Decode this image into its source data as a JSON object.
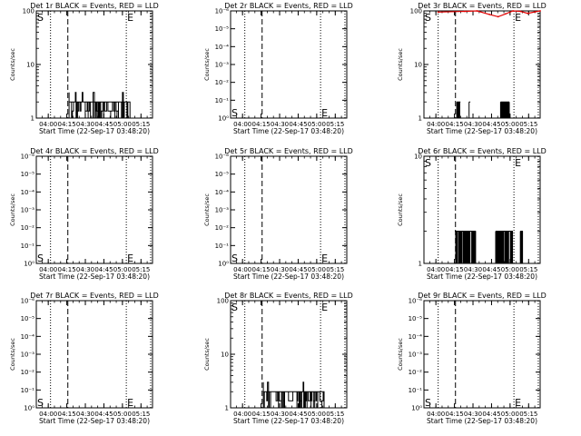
{
  "figure": {
    "x_ticks": [
      "04:00",
      "04:15",
      "04:30",
      "04:45",
      "05:00",
      "05:15"
    ],
    "x_label": "Start Time (22-Sep-17 03:48:20)",
    "y_label": "Counts/sec",
    "start_marker": "S",
    "end_marker": "E",
    "colors": {
      "events": "#000000",
      "lld": "#e00000",
      "axes": "#000000"
    }
  },
  "chart_data": [
    {
      "type": "line",
      "title": "Det 1r BLACK = Events, RED = LLD",
      "x_unit": "minutes since 03:48:20",
      "x_range": [
        2.0,
        96.0
      ],
      "y_ticks": [
        "1",
        "10",
        "100"
      ],
      "start_x": 13.5,
      "end_x": 74.8,
      "dashed_x": 27.5,
      "dotted_x": [
        13.5,
        74.8,
        94.5
      ],
      "s_pos": "top",
      "e_pos": "top",
      "events": {
        "x_start": 28.5,
        "x_end": 77.0,
        "low": 1.35,
        "high": 2.0,
        "peak": 3.0
      },
      "lld_present": false
    },
    {
      "type": "line",
      "title": "Det 2r BLACK = Events, RED = LLD",
      "x_unit": "minutes since 03:48:20",
      "x_range": [
        2.0,
        96.0
      ],
      "y_ticks": [
        "10⁰",
        "10⁻¹",
        "10⁻²",
        "10⁻³",
        "10⁻⁴",
        "10⁻⁵",
        "10⁻⁶"
      ],
      "start_x": 13.5,
      "end_x": 74.8,
      "dashed_x": 27.5,
      "dotted_x": [
        13.5,
        74.8,
        94.5
      ],
      "s_pos": "bottom",
      "e_pos": "bottom",
      "events": null,
      "lld_present": false
    },
    {
      "type": "line",
      "title": "Det 3r BLACK = Events, RED = LLD",
      "x_unit": "minutes since 03:48:20",
      "x_range": [
        2.0,
        96.0
      ],
      "y_ticks": [
        "1",
        "10",
        "100"
      ],
      "start_x": 13.5,
      "end_x": 74.8,
      "dashed_x": 27.5,
      "dotted_x": [
        13.5,
        74.8,
        94.5
      ],
      "s_pos": "top",
      "e_pos": "top",
      "events": {
        "x_start": 28.5,
        "x_end": 77.0,
        "low": 1.0,
        "high": 2.0,
        "peak": 2.0,
        "bursts": [
          [
            28.5,
            31.5
          ],
          [
            38.5,
            39.5
          ],
          [
            64.0,
            71.0
          ]
        ]
      },
      "lld_present": true,
      "lld": {
        "x": [
          13.5,
          35,
          45,
          55,
          62,
          68,
          74,
          80,
          86,
          92,
          96
        ],
        "y": [
          95,
          98,
          100,
          86,
          78,
          88,
          100,
          98,
          90,
          96,
          100
        ]
      }
    },
    {
      "type": "line",
      "title": "Det 4r BLACK = Events, RED = LLD",
      "x_unit": "minutes since 03:48:20",
      "x_range": [
        2.0,
        96.0
      ],
      "y_ticks": [
        "10⁰",
        "10⁻¹",
        "10⁻²",
        "10⁻³",
        "10⁻⁴",
        "10⁻⁵",
        "10⁻⁶"
      ],
      "start_x": 13.5,
      "end_x": 74.8,
      "dashed_x": 27.5,
      "dotted_x": [
        13.5,
        74.8,
        94.5
      ],
      "s_pos": "bottom",
      "e_pos": "bottom",
      "events": null,
      "lld_present": false
    },
    {
      "type": "line",
      "title": "Det 5r BLACK = Events, RED = LLD",
      "x_unit": "minutes since 03:48:20",
      "x_range": [
        2.0,
        96.0
      ],
      "y_ticks": [
        "10⁰",
        "10⁻¹",
        "10⁻²",
        "10⁻³",
        "10⁻⁴",
        "10⁻⁵",
        "10⁻⁶"
      ],
      "start_x": 13.5,
      "end_x": 74.8,
      "dashed_x": 27.5,
      "dotted_x": [
        13.5,
        74.8,
        94.5
      ],
      "s_pos": "bottom",
      "e_pos": "bottom",
      "events": null,
      "lld_present": false
    },
    {
      "type": "line",
      "title": "Det 6r BLACK = Events, RED = LLD",
      "x_unit": "minutes since 03:48:20",
      "x_range": [
        2.0,
        96.0
      ],
      "y_ticks": [
        "1",
        "10"
      ],
      "start_x": 13.5,
      "end_x": 74.8,
      "dashed_x": 27.5,
      "dotted_x": [
        13.5,
        74.8,
        94.5
      ],
      "s_pos": "top",
      "e_pos": "top",
      "events": {
        "x_start": 27.0,
        "x_end": 82.0,
        "low": 1.0,
        "high": 2.0,
        "peak": 2.0,
        "bursts": [
          [
            27.0,
            44.0
          ],
          [
            60.0,
            74.0
          ],
          [
            80.0,
            82.0
          ]
        ]
      },
      "lld_present": false
    },
    {
      "type": "line",
      "title": "Det 7r BLACK = Events, RED = LLD",
      "x_unit": "minutes since 03:48:20",
      "x_range": [
        2.0,
        96.0
      ],
      "y_ticks": [
        "10⁰",
        "10⁻¹",
        "10⁻²",
        "10⁻³",
        "10⁻⁴",
        "10⁻⁵",
        "10⁻⁶"
      ],
      "start_x": 13.5,
      "end_x": 74.8,
      "dashed_x": 27.5,
      "dotted_x": [
        13.5,
        74.8,
        94.5
      ],
      "s_pos": "bottom",
      "e_pos": "bottom",
      "events": null,
      "lld_present": false
    },
    {
      "type": "line",
      "title": "Det 8r BLACK = Events, RED = LLD",
      "x_unit": "minutes since 03:48:20",
      "x_range": [
        2.0,
        96.0
      ],
      "y_ticks": [
        "1",
        "10",
        "100"
      ],
      "start_x": 13.5,
      "end_x": 74.8,
      "dashed_x": 27.5,
      "dotted_x": [
        13.5,
        74.8,
        94.5
      ],
      "s_pos": "top",
      "e_pos": "top",
      "events": {
        "x_start": 28.5,
        "x_end": 77.0,
        "low": 1.35,
        "high": 2.0,
        "peak": 3.0
      },
      "lld_present": false
    },
    {
      "type": "line",
      "title": "Det 9r BLACK = Events, RED = LLD",
      "x_unit": "minutes since 03:48:20",
      "x_range": [
        2.0,
        96.0
      ],
      "y_ticks": [
        "10⁰",
        "10⁻¹",
        "10⁻²",
        "10⁻³",
        "10⁻⁴",
        "10⁻⁵",
        "10⁻⁶"
      ],
      "start_x": 13.5,
      "end_x": 74.8,
      "dashed_x": 27.5,
      "dotted_x": [
        13.5,
        74.8,
        94.5
      ],
      "s_pos": "bottom",
      "e_pos": "bottom",
      "events": null,
      "lld_present": false
    }
  ]
}
